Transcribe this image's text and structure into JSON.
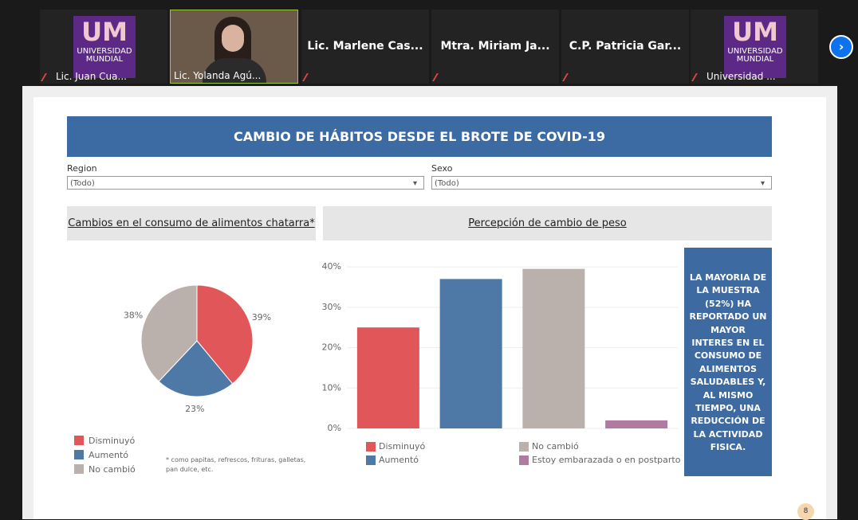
{
  "logo": {
    "mark": "UM",
    "line1": "UNIVERSIDAD",
    "line2": "MUNDIAL"
  },
  "participants": [
    {
      "name": "Lic. Juan Cua..."
    },
    {
      "name": "Lic. Yolanda Agú..."
    },
    {
      "name": "Lic. Marlene Cas..."
    },
    {
      "name": "Mtra. Miriam Ja..."
    },
    {
      "name": "C.P. Patricia Gar..."
    },
    {
      "name": "Universidad ..."
    }
  ],
  "dashboard": {
    "title": "CAMBIO DE HÁBITOS DESDE EL BROTE DE COVID-19",
    "filters": [
      {
        "label": "Region",
        "value": "(Todo)"
      },
      {
        "label": "Sexo",
        "value": "(Todo)"
      }
    ],
    "callout": "LA MAYORIA DE LA MUESTRA (52%) HA REPORTADO UN MAYOR INTERES EN EL CONSUMO DE ALIMENTOS SALUDABLES Y, AL MISMO TIEMPO, UNA REDUCCIÓN DE LA ACTIVIDAD FISICA.",
    "page": "8"
  },
  "chart_data": [
    {
      "type": "pie",
      "title": "Cambios en el consumo de alimentos chatarra*",
      "categories": [
        "Disminuyó",
        "Aumentó",
        "No cambió"
      ],
      "values": [
        39,
        23,
        38
      ],
      "value_labels": [
        "39%",
        "23%",
        "38%"
      ],
      "colors": [
        "#e15759",
        "#4e79a7",
        "#bab0ac"
      ],
      "note": "* como papitas, refrescos, frituras, galletas, pan dulce, etc."
    },
    {
      "type": "bar",
      "title": "Percepción de cambio de peso",
      "series": [
        {
          "name": "Disminuyó",
          "color": "#e15759",
          "values": [
            25
          ]
        },
        {
          "name": "Aumentó",
          "color": "#4e79a7",
          "values": [
            37
          ]
        },
        {
          "name": "No cambió",
          "color": "#bab0ac",
          "values": [
            39.5
          ]
        },
        {
          "name": "Estoy embarazada o en postparto",
          "color": "#b07aa1",
          "values": [
            2
          ]
        }
      ],
      "ylim": [
        0,
        42
      ],
      "yticks": [
        {
          "value": 0,
          "label": "0%"
        },
        {
          "value": 10,
          "label": "10%"
        },
        {
          "value": 20,
          "label": "20%"
        },
        {
          "value": 30,
          "label": "30%"
        },
        {
          "value": 40,
          "label": "40%"
        }
      ],
      "grid": true
    }
  ]
}
